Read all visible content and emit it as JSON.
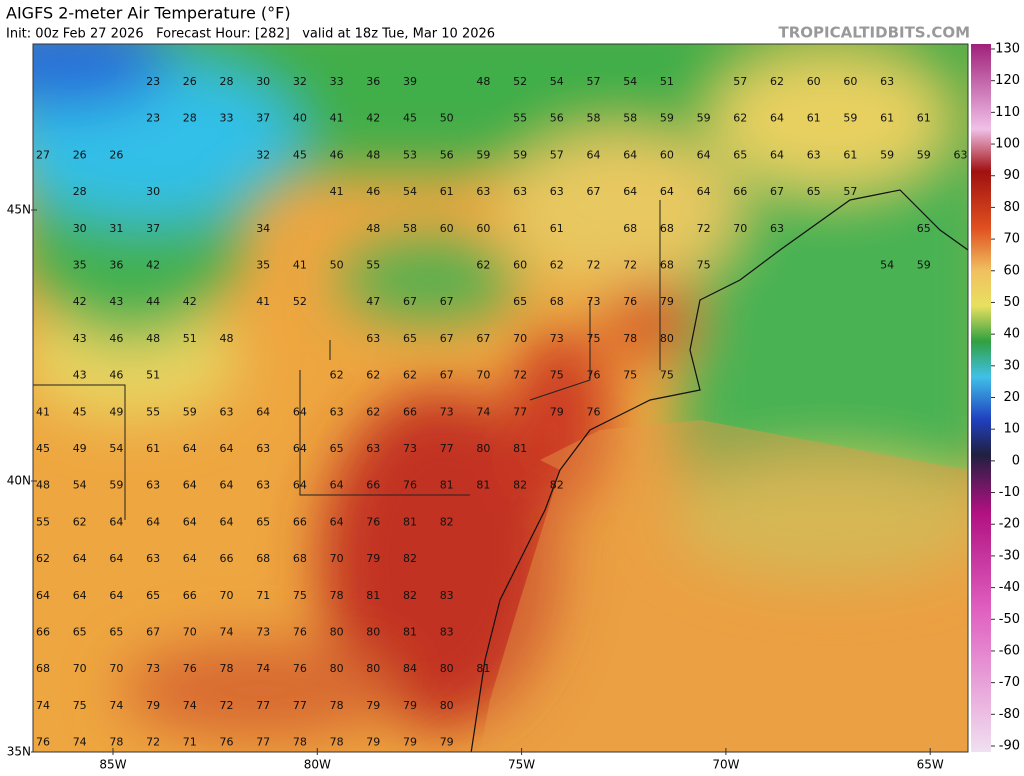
{
  "header": {
    "title": "AIGFS 2-meter Air Temperature (°F)",
    "subtitle": "Init: 00z Feb 27 2026   Forecast Hour: [282]   valid at 18z Tue, Mar 10 2026",
    "credit": "TROPICALTIDBITS.COM"
  },
  "map": {
    "lat_labels": [
      "45N",
      "40N",
      "35N"
    ],
    "lon_labels": [
      "85W",
      "80W",
      "75W",
      "70W",
      "65W"
    ],
    "temperature_grid": [
      [
        null,
        null,
        null,
        23,
        26,
        28,
        30,
        32,
        33,
        36,
        39,
        null,
        48,
        52,
        54,
        57,
        54,
        51,
        null,
        57,
        62,
        60,
        60,
        63
      ],
      [
        null,
        null,
        null,
        23,
        28,
        33,
        37,
        40,
        41,
        42,
        45,
        50,
        null,
        55,
        56,
        58,
        58,
        59,
        59,
        62,
        64,
        61,
        59,
        61,
        61
      ],
      [
        27,
        26,
        26,
        null,
        null,
        null,
        32,
        45,
        46,
        48,
        53,
        56,
        59,
        59,
        57,
        64,
        64,
        60,
        64,
        65,
        64,
        63,
        61,
        59,
        59,
        63
      ],
      [
        null,
        28,
        null,
        30,
        null,
        null,
        null,
        null,
        41,
        46,
        54,
        61,
        63,
        63,
        63,
        67,
        64,
        64,
        64,
        66,
        67,
        65,
        57
      ],
      [
        null,
        30,
        31,
        37,
        null,
        null,
        34,
        null,
        null,
        48,
        58,
        60,
        60,
        61,
        61,
        null,
        68,
        68,
        72,
        70,
        63,
        null,
        null,
        null,
        65
      ],
      [
        null,
        35,
        36,
        42,
        null,
        null,
        35,
        41,
        50,
        55,
        null,
        null,
        62,
        60,
        62,
        72,
        72,
        68,
        75,
        null,
        null,
        null,
        null,
        54,
        59
      ],
      [
        null,
        42,
        43,
        44,
        42,
        null,
        41,
        52,
        null,
        47,
        67,
        67,
        null,
        65,
        68,
        73,
        76,
        79
      ],
      [
        null,
        43,
        46,
        48,
        51,
        48,
        null,
        null,
        null,
        63,
        65,
        67,
        67,
        70,
        73,
        75,
        78,
        80
      ],
      [
        null,
        43,
        46,
        51,
        null,
        null,
        null,
        null,
        62,
        62,
        62,
        67,
        70,
        72,
        75,
        76,
        75,
        75
      ],
      [
        41,
        45,
        49,
        55,
        59,
        63,
        64,
        64,
        63,
        62,
        66,
        73,
        74,
        77,
        79,
        76
      ],
      [
        45,
        49,
        54,
        61,
        64,
        64,
        63,
        64,
        65,
        63,
        73,
        77,
        80,
        81
      ],
      [
        48,
        54,
        59,
        63,
        64,
        64,
        63,
        64,
        64,
        66,
        76,
        81,
        81,
        82,
        82
      ],
      [
        55,
        62,
        64,
        64,
        64,
        64,
        65,
        66,
        64,
        76,
        81,
        82
      ],
      [
        62,
        64,
        64,
        63,
        64,
        66,
        68,
        68,
        70,
        79,
        82
      ],
      [
        64,
        64,
        64,
        65,
        66,
        70,
        71,
        75,
        78,
        81,
        82,
        83
      ],
      [
        66,
        65,
        65,
        67,
        70,
        74,
        73,
        76,
        80,
        80,
        81,
        83
      ],
      [
        68,
        70,
        70,
        73,
        76,
        78,
        74,
        76,
        80,
        80,
        84,
        80,
        81
      ],
      [
        74,
        75,
        74,
        79,
        74,
        72,
        77,
        77,
        78,
        79,
        79,
        80
      ],
      [
        76,
        74,
        78,
        72,
        71,
        76,
        77,
        78,
        78,
        79,
        79,
        79
      ]
    ]
  },
  "colorbar": {
    "ticks": [
      130,
      120,
      110,
      100,
      90,
      80,
      70,
      60,
      50,
      40,
      30,
      20,
      10,
      0,
      -10,
      -20,
      -30,
      -40,
      -50,
      -60,
      -70,
      -80,
      -90
    ]
  }
}
